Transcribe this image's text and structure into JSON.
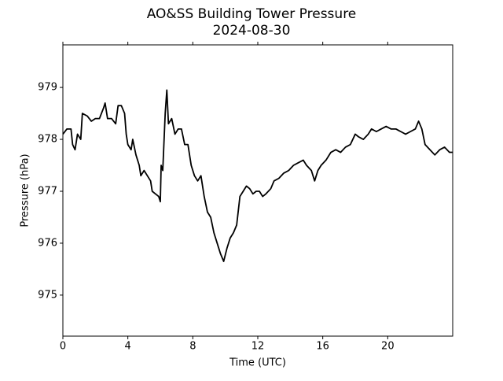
{
  "chart_data": {
    "type": "line",
    "title": "AO&SS Building Tower Pressure",
    "subtitle": "2024-08-30",
    "x_label": "Time (UTC)",
    "y_label": "Pressure (hPa)",
    "xlim": [
      0,
      24
    ],
    "ylim": [
      974.21,
      979.82
    ],
    "xticks": [
      0,
      4,
      8,
      12,
      16,
      20
    ],
    "yticks": [
      975,
      976,
      977,
      978,
      979
    ],
    "grid": false,
    "series": [
      {
        "color": "#000000",
        "x": [
          0,
          0.25,
          0.5,
          0.6,
          0.75,
          0.9,
          1.1,
          1.2,
          1.5,
          1.75,
          2.0,
          2.25,
          2.5,
          2.6,
          2.75,
          3.0,
          3.25,
          3.4,
          3.6,
          3.8,
          3.9,
          4.0,
          4.2,
          4.3,
          4.5,
          4.7,
          4.8,
          5.0,
          5.2,
          5.4,
          5.5,
          5.7,
          5.9,
          6.0,
          6.05,
          6.15,
          6.3,
          6.4,
          6.5,
          6.7,
          6.9,
          7.1,
          7.3,
          7.5,
          7.7,
          7.9,
          8.1,
          8.3,
          8.5,
          8.7,
          8.9,
          9.1,
          9.3,
          9.5,
          9.7,
          9.9,
          10.1,
          10.3,
          10.5,
          10.7,
          10.9,
          11.1,
          11.3,
          11.5,
          11.7,
          11.9,
          12.1,
          12.3,
          12.5,
          12.8,
          13.0,
          13.3,
          13.6,
          13.9,
          14.2,
          14.5,
          14.8,
          15.0,
          15.3,
          15.5,
          15.7,
          15.9,
          16.2,
          16.5,
          16.8,
          17.1,
          17.4,
          17.7,
          18.0,
          18.2,
          18.5,
          18.8,
          19.0,
          19.3,
          19.6,
          19.9,
          20.2,
          20.5,
          20.8,
          21.1,
          21.4,
          21.7,
          21.9,
          22.1,
          22.3,
          22.6,
          22.9,
          23.2,
          23.5,
          23.8,
          24.0
        ],
        "values": [
          978.1,
          978.2,
          978.2,
          977.9,
          977.8,
          978.1,
          978.0,
          978.5,
          978.45,
          978.35,
          978.4,
          978.4,
          978.6,
          978.7,
          978.4,
          978.4,
          978.3,
          978.65,
          978.65,
          978.5,
          978.1,
          977.9,
          977.8,
          978.0,
          977.7,
          977.5,
          977.3,
          977.4,
          977.3,
          977.2,
          977.0,
          976.95,
          976.9,
          976.8,
          977.5,
          977.4,
          978.5,
          978.95,
          978.3,
          978.4,
          978.1,
          978.2,
          978.2,
          977.9,
          977.9,
          977.5,
          977.3,
          977.2,
          977.3,
          976.9,
          976.6,
          976.5,
          976.2,
          976.0,
          975.8,
          975.65,
          975.9,
          976.1,
          976.2,
          976.35,
          976.9,
          977.0,
          977.1,
          977.05,
          976.95,
          977.0,
          977.0,
          976.9,
          976.95,
          977.05,
          977.2,
          977.25,
          977.35,
          977.4,
          977.5,
          977.55,
          977.6,
          977.5,
          977.4,
          977.2,
          977.4,
          977.5,
          977.6,
          977.75,
          977.8,
          977.75,
          977.85,
          977.9,
          978.1,
          978.05,
          978.0,
          978.1,
          978.2,
          978.15,
          978.2,
          978.25,
          978.2,
          978.2,
          978.15,
          978.1,
          978.15,
          978.2,
          978.35,
          978.2,
          977.9,
          977.8,
          977.7,
          977.8,
          977.85,
          977.75,
          977.75
        ]
      }
    ]
  }
}
